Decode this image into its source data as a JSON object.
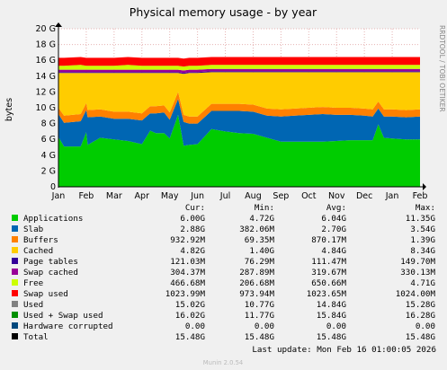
{
  "chart_data": {
    "type": "area",
    "title": "Physical memory usage - by year",
    "ylabel": "bytes",
    "side_label": "RRDTOOL / TOBI OETIKER",
    "footer": "Munin 2.0.54",
    "ylim": [
      0,
      20
    ],
    "y_ticks": [
      "0",
      "2 G",
      "4 G",
      "6 G",
      "8 G",
      "10 G",
      "12 G",
      "14 G",
      "16 G",
      "18 G",
      "20 G"
    ],
    "x_ticks": [
      "Jan",
      "Feb",
      "Mar",
      "Apr",
      "May",
      "Jun",
      "Jul",
      "Aug",
      "Sep",
      "Oct",
      "Nov",
      "Dec",
      "Jan",
      "Feb"
    ],
    "x": [
      0,
      0.2,
      0.8,
      1.0,
      1.05,
      1.5,
      2.0,
      2.5,
      3.0,
      3.3,
      3.5,
      3.8,
      4.0,
      4.3,
      4.5,
      4.7,
      5.0,
      5.5,
      6.0,
      6.5,
      7.0,
      7.5,
      8.0,
      8.5,
      9.0,
      9.5,
      10.0,
      10.5,
      11.0,
      11.3,
      11.5,
      11.7,
      12.0,
      12.5,
      13.0
    ],
    "series": [
      {
        "name": "Applications",
        "color": "#00cc00",
        "values": [
          6.3,
          5.1,
          5.1,
          6.9,
          5.3,
          6.2,
          6.0,
          5.8,
          5.4,
          7.1,
          6.8,
          6.8,
          6.1,
          9.1,
          5.2,
          5.3,
          5.4,
          7.3,
          7.0,
          6.8,
          6.7,
          6.2,
          5.7,
          5.7,
          5.7,
          5.7,
          5.8,
          5.9,
          5.9,
          5.9,
          7.9,
          6.2,
          6.1,
          6.0,
          6.0
        ]
      },
      {
        "name": "Slab",
        "color": "#0066b3",
        "values": [
          2.9,
          3.0,
          3.2,
          2.8,
          3.5,
          2.7,
          2.6,
          2.8,
          3.0,
          2.2,
          2.5,
          2.6,
          2.4,
          2.0,
          3.0,
          2.7,
          2.6,
          2.3,
          2.6,
          2.8,
          2.8,
          2.8,
          3.2,
          3.3,
          3.4,
          3.5,
          3.3,
          3.2,
          3.1,
          3.0,
          2.0,
          2.7,
          2.8,
          2.8,
          2.9
        ]
      },
      {
        "name": "Buffers",
        "color": "#ff8000",
        "values": [
          0.8,
          0.9,
          0.9,
          0.9,
          0.9,
          0.9,
          0.9,
          0.9,
          0.9,
          0.9,
          0.9,
          0.9,
          0.9,
          0.9,
          0.9,
          0.9,
          0.9,
          0.9,
          0.9,
          0.9,
          0.9,
          0.9,
          0.9,
          0.9,
          0.9,
          0.9,
          0.9,
          0.9,
          0.9,
          0.9,
          0.9,
          0.9,
          0.9,
          0.9,
          0.9
        ]
      },
      {
        "name": "Cached",
        "color": "#ffcc00",
        "values": [
          4.4,
          5.4,
          5.2,
          3.8,
          4.7,
          4.6,
          4.9,
          4.9,
          5.1,
          4.2,
          4.2,
          4.1,
          5.0,
          2.4,
          5.2,
          5.5,
          5.5,
          4.0,
          4.0,
          4.0,
          4.1,
          4.6,
          4.7,
          4.6,
          4.5,
          4.4,
          4.5,
          4.5,
          4.6,
          4.7,
          3.7,
          4.7,
          4.7,
          4.8,
          4.7
        ]
      },
      {
        "name": "Page tables",
        "color": "#330099",
        "values": [
          0.12,
          0.12,
          0.12,
          0.12,
          0.12,
          0.12,
          0.12,
          0.12,
          0.12,
          0.12,
          0.12,
          0.12,
          0.12,
          0.12,
          0.12,
          0.12,
          0.12,
          0.12,
          0.12,
          0.12,
          0.12,
          0.12,
          0.12,
          0.12,
          0.12,
          0.12,
          0.12,
          0.12,
          0.12,
          0.12,
          0.12,
          0.12,
          0.12,
          0.12,
          0.12
        ]
      },
      {
        "name": "Swap cached",
        "color": "#990099",
        "values": [
          0.3,
          0.3,
          0.3,
          0.3,
          0.3,
          0.3,
          0.3,
          0.3,
          0.3,
          0.3,
          0.3,
          0.3,
          0.3,
          0.3,
          0.3,
          0.3,
          0.3,
          0.3,
          0.3,
          0.3,
          0.3,
          0.3,
          0.3,
          0.3,
          0.3,
          0.3,
          0.3,
          0.3,
          0.3,
          0.3,
          0.3,
          0.3,
          0.3,
          0.3,
          0.3
        ]
      },
      {
        "name": "Free",
        "color": "#ccff00",
        "values": [
          0.5,
          0.5,
          0.6,
          0.5,
          0.5,
          0.5,
          0.5,
          0.6,
          0.5,
          0.5,
          0.5,
          0.5,
          0.5,
          0.5,
          0.5,
          0.5,
          0.5,
          0.5,
          0.5,
          0.5,
          0.5,
          0.5,
          0.5,
          0.5,
          0.5,
          0.5,
          0.5,
          0.5,
          0.5,
          0.5,
          0.5,
          0.5,
          0.5,
          0.5,
          0.5
        ]
      },
      {
        "name": "Swap used",
        "color": "#ff0000",
        "values": [
          1.0,
          1.0,
          1.0,
          1.0,
          1.0,
          1.0,
          1.0,
          1.0,
          1.0,
          1.0,
          1.0,
          1.0,
          1.0,
          1.0,
          1.0,
          1.0,
          1.0,
          1.0,
          1.0,
          1.0,
          1.0,
          1.0,
          1.0,
          1.0,
          1.0,
          1.0,
          1.0,
          1.0,
          1.0,
          1.0,
          1.0,
          1.0,
          1.0,
          1.0,
          1.0
        ]
      }
    ],
    "legend_header": [
      "Cur:",
      "Min:",
      "Avg:",
      "Max:"
    ],
    "legend": [
      {
        "name": "Applications",
        "color": "#00cc00",
        "cur": "6.00G",
        "min": "4.72G",
        "avg": "6.04G",
        "max": "11.35G"
      },
      {
        "name": "Slab",
        "color": "#0066b3",
        "cur": "2.88G",
        "min": "382.06M",
        "avg": "2.70G",
        "max": "3.54G"
      },
      {
        "name": "Buffers",
        "color": "#ff8000",
        "cur": "932.92M",
        "min": "69.35M",
        "avg": "870.17M",
        "max": "1.39G"
      },
      {
        "name": "Cached",
        "color": "#ffcc00",
        "cur": "4.82G",
        "min": "1.40G",
        "avg": "4.84G",
        "max": "8.34G"
      },
      {
        "name": "Page tables",
        "color": "#330099",
        "cur": "121.03M",
        "min": "76.29M",
        "avg": "111.47M",
        "max": "149.70M"
      },
      {
        "name": "Swap cached",
        "color": "#990099",
        "cur": "304.37M",
        "min": "287.89M",
        "avg": "319.67M",
        "max": "330.13M"
      },
      {
        "name": "Free",
        "color": "#ccff00",
        "cur": "466.68M",
        "min": "206.68M",
        "avg": "650.66M",
        "max": "4.71G"
      },
      {
        "name": "Swap used",
        "color": "#ff0000",
        "cur": "1023.99M",
        "min": "973.94M",
        "avg": "1023.65M",
        "max": "1024.00M"
      },
      {
        "name": "Used",
        "color": "#808080",
        "cur": "15.02G",
        "min": "10.77G",
        "avg": "14.84G",
        "max": "15.28G"
      },
      {
        "name": "Used + Swap used",
        "color": "#008f00",
        "cur": "16.02G",
        "min": "11.77G",
        "avg": "15.84G",
        "max": "16.28G"
      },
      {
        "name": "Hardware corrupted",
        "color": "#00487d",
        "cur": "0.00",
        "min": "0.00",
        "avg": "0.00",
        "max": "0.00"
      },
      {
        "name": "Total",
        "color": "#000000",
        "cur": "15.48G",
        "min": "15.48G",
        "avg": "15.48G",
        "max": "15.48G"
      }
    ],
    "last_update": "Last update: Mon Feb 16 01:00:05 2026",
    "grid": true
  }
}
